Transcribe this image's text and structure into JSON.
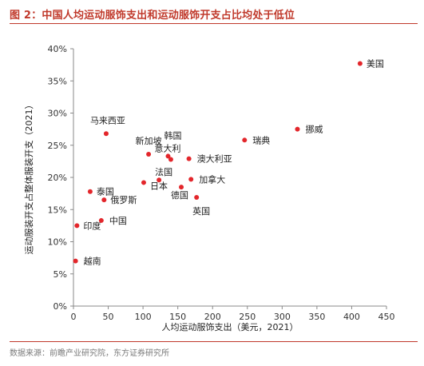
{
  "figure": {
    "title": "图 2：中国人均运动服饰支出和运动服饰开支占比均处于低位",
    "source": "数据来源：前瞻产业研究院，东方证券研究所",
    "accent_color": "#c0392b",
    "point_color": "#e3262b"
  },
  "chart_data": {
    "type": "scatter",
    "xlabel": "人均运动服饰支出（美元，2021）",
    "ylabel": "运动服装开支占整体服装开支（2021）",
    "xlim": [
      0,
      450
    ],
    "ylim": [
      0,
      40
    ],
    "x_ticks": [
      "0",
      "50",
      "100",
      "150",
      "200",
      "250",
      "300",
      "350",
      "400",
      "450"
    ],
    "y_ticks": [
      "0%",
      "5%",
      "10%",
      "15%",
      "20%",
      "25%",
      "30%",
      "35%",
      "40%"
    ],
    "grid": false,
    "points": [
      {
        "name": "美国",
        "x": 412,
        "y": 37.7
      },
      {
        "name": "挪威",
        "x": 322,
        "y": 27.5
      },
      {
        "name": "瑞典",
        "x": 246,
        "y": 25.8
      },
      {
        "name": "马来西亚",
        "x": 47,
        "y": 26.8
      },
      {
        "name": "新加坡",
        "x": 108,
        "y": 23.6
      },
      {
        "name": "韩国",
        "x": 136,
        "y": 23.3
      },
      {
        "name": "澳大利亚",
        "x": 166,
        "y": 22.9
      },
      {
        "name": "意大利",
        "x": 140,
        "y": 22.8
      },
      {
        "name": "法国",
        "x": 123,
        "y": 19.6
      },
      {
        "name": "加拿大",
        "x": 169,
        "y": 19.7
      },
      {
        "name": "日本",
        "x": 101,
        "y": 19.2
      },
      {
        "name": "德国",
        "x": 155,
        "y": 18.5
      },
      {
        "name": "英国",
        "x": 177,
        "y": 16.9
      },
      {
        "name": "泰国",
        "x": 24,
        "y": 17.8
      },
      {
        "name": "俄罗斯",
        "x": 44,
        "y": 16.5
      },
      {
        "name": "中国",
        "x": 40,
        "y": 13.3
      },
      {
        "name": "印度",
        "x": 5,
        "y": 12.5
      },
      {
        "name": "越南",
        "x": 3,
        "y": 7.0
      }
    ]
  }
}
